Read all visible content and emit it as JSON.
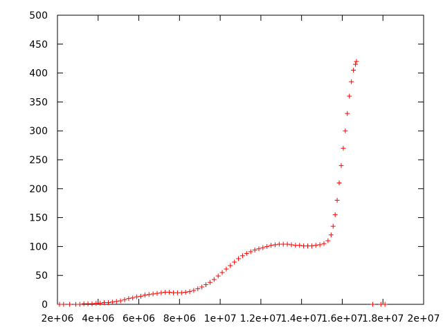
{
  "chart_data": {
    "type": "scatter",
    "title": "",
    "xlabel": "",
    "ylabel": "",
    "xlim": [
      2000000,
      20000000
    ],
    "ylim": [
      0,
      500
    ],
    "grid": false,
    "marker": "+",
    "series_color": "#ff0000",
    "x_ticks": [
      {
        "value": 2000000,
        "label": "2e+06"
      },
      {
        "value": 4000000,
        "label": "4e+06"
      },
      {
        "value": 6000000,
        "label": "6e+06"
      },
      {
        "value": 8000000,
        "label": "8e+06"
      },
      {
        "value": 10000000,
        "label": "1e+07"
      },
      {
        "value": 12000000,
        "label": "1.2e+07"
      },
      {
        "value": 14000000,
        "label": "1.4e+07"
      },
      {
        "value": 16000000,
        "label": "1.6e+07"
      },
      {
        "value": 18000000,
        "label": "1.8e+07"
      },
      {
        "value": 20000000,
        "label": "2e+07"
      }
    ],
    "y_ticks": [
      {
        "value": 0,
        "label": "0"
      },
      {
        "value": 50,
        "label": "50"
      },
      {
        "value": 100,
        "label": "100"
      },
      {
        "value": 150,
        "label": "150"
      },
      {
        "value": 200,
        "label": "200"
      },
      {
        "value": 250,
        "label": "250"
      },
      {
        "value": 300,
        "label": "300"
      },
      {
        "value": 350,
        "label": "350"
      },
      {
        "value": 400,
        "label": "400"
      },
      {
        "value": 450,
        "label": "450"
      },
      {
        "value": 500,
        "label": "500"
      }
    ],
    "series": [
      {
        "points": [
          [
            2100000,
            0
          ],
          [
            2300000,
            0
          ],
          [
            2600000,
            0
          ],
          [
            2900000,
            0
          ],
          [
            3100000,
            0
          ],
          [
            3300000,
            1
          ],
          [
            3500000,
            1
          ],
          [
            3700000,
            1
          ],
          [
            3900000,
            2
          ],
          [
            4100000,
            2
          ],
          [
            4300000,
            3
          ],
          [
            4500000,
            3
          ],
          [
            4700000,
            4
          ],
          [
            4900000,
            5
          ],
          [
            5100000,
            6
          ],
          [
            5300000,
            8
          ],
          [
            5500000,
            10
          ],
          [
            5700000,
            11
          ],
          [
            5900000,
            13
          ],
          [
            6100000,
            14
          ],
          [
            6300000,
            16
          ],
          [
            6500000,
            17
          ],
          [
            6700000,
            18
          ],
          [
            6900000,
            19
          ],
          [
            7100000,
            20
          ],
          [
            7300000,
            21
          ],
          [
            7500000,
            21
          ],
          [
            7700000,
            20
          ],
          [
            7900000,
            20
          ],
          [
            8100000,
            20
          ],
          [
            8300000,
            21
          ],
          [
            8500000,
            22
          ],
          [
            8700000,
            24
          ],
          [
            8900000,
            27
          ],
          [
            9100000,
            30
          ],
          [
            9300000,
            34
          ],
          [
            9500000,
            38
          ],
          [
            9700000,
            43
          ],
          [
            9900000,
            49
          ],
          [
            10100000,
            55
          ],
          [
            10300000,
            61
          ],
          [
            10500000,
            67
          ],
          [
            10700000,
            73
          ],
          [
            10900000,
            79
          ],
          [
            11100000,
            84
          ],
          [
            11300000,
            88
          ],
          [
            11500000,
            91
          ],
          [
            11700000,
            94
          ],
          [
            11900000,
            96
          ],
          [
            12100000,
            98
          ],
          [
            12300000,
            100
          ],
          [
            12500000,
            102
          ],
          [
            12700000,
            103
          ],
          [
            12900000,
            104
          ],
          [
            13100000,
            104
          ],
          [
            13300000,
            104
          ],
          [
            13500000,
            103
          ],
          [
            13700000,
            102
          ],
          [
            13900000,
            102
          ],
          [
            14100000,
            101
          ],
          [
            14300000,
            101
          ],
          [
            14500000,
            101
          ],
          [
            14700000,
            102
          ],
          [
            14900000,
            103
          ],
          [
            15100000,
            105
          ],
          [
            15300000,
            110
          ],
          [
            15450000,
            120
          ],
          [
            15550000,
            135
          ],
          [
            15650000,
            155
          ],
          [
            15750000,
            180
          ],
          [
            15850000,
            210
          ],
          [
            15950000,
            240
          ],
          [
            16050000,
            270
          ],
          [
            16150000,
            300
          ],
          [
            16250000,
            330
          ],
          [
            16350000,
            360
          ],
          [
            16450000,
            385
          ],
          [
            16550000,
            405
          ],
          [
            16650000,
            415
          ],
          [
            16700000,
            420
          ],
          [
            17500000,
            0
          ],
          [
            17900000,
            0
          ],
          [
            18100000,
            0
          ]
        ]
      }
    ]
  }
}
